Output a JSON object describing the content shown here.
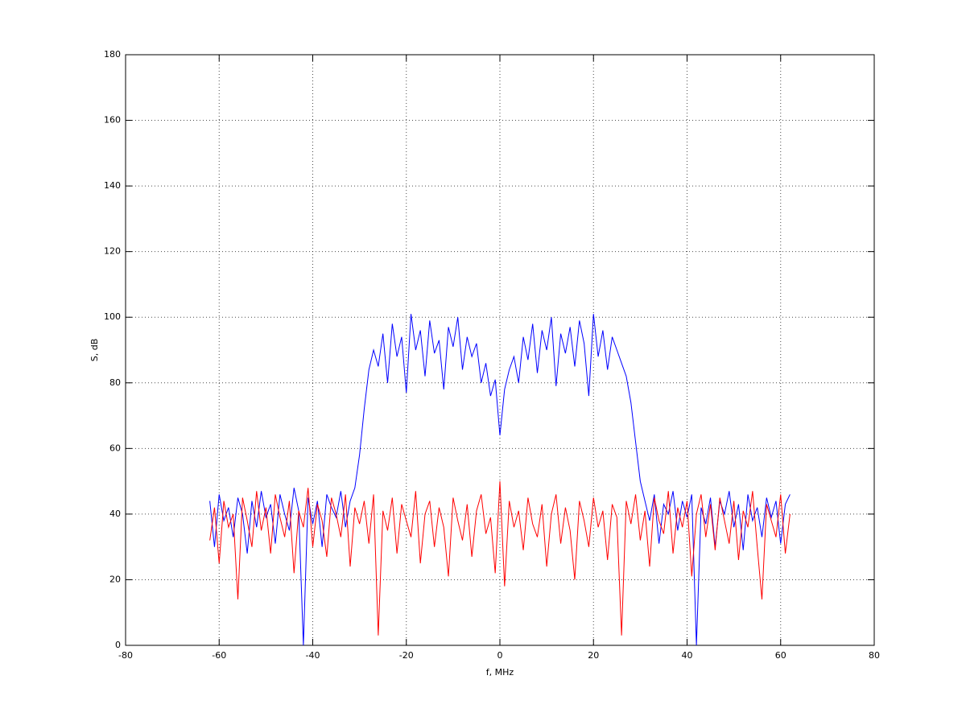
{
  "chart_data": {
    "type": "line",
    "xlabel": "f, MHz",
    "ylabel": "S, dB",
    "xlim": [
      -80,
      80
    ],
    "xticks": [
      -80,
      -60,
      -40,
      -20,
      0,
      20,
      40,
      60,
      80
    ],
    "ylim": [
      0,
      180
    ],
    "yticks": [
      0,
      20,
      40,
      60,
      80,
      100,
      120,
      140,
      160,
      180
    ],
    "grid": true,
    "x": [
      -62,
      -61,
      -60,
      -59,
      -58,
      -57,
      -56,
      -55,
      -54,
      -53,
      -52,
      -51,
      -50,
      -49,
      -48,
      -47,
      -46,
      -45,
      -44,
      -43,
      -42,
      -41,
      -40,
      -39,
      -38,
      -37,
      -36,
      -35,
      -34,
      -33,
      -32,
      -31,
      -30,
      -29,
      -28,
      -27,
      -26,
      -25,
      -24,
      -23,
      -22,
      -21,
      -20,
      -19,
      -18,
      -17,
      -16,
      -15,
      -14,
      -13,
      -12,
      -11,
      -10,
      -9,
      -8,
      -7,
      -6,
      -5,
      -4,
      -3,
      -2,
      -1,
      0,
      1,
      2,
      3,
      4,
      5,
      6,
      7,
      8,
      9,
      10,
      11,
      12,
      13,
      14,
      15,
      16,
      17,
      18,
      19,
      20,
      21,
      22,
      23,
      24,
      25,
      26,
      27,
      28,
      29,
      30,
      31,
      32,
      33,
      34,
      35,
      36,
      37,
      38,
      39,
      40,
      41,
      42,
      43,
      44,
      45,
      46,
      47,
      48,
      49,
      50,
      51,
      52,
      53,
      54,
      55,
      56,
      57,
      58,
      59,
      60,
      61,
      62
    ],
    "series": [
      {
        "color": "#0000ff",
        "values": [
          44,
          30,
          46,
          38,
          42,
          33,
          45,
          40,
          28,
          44,
          36,
          47,
          39,
          43,
          31,
          46,
          40,
          35,
          48,
          41,
          0,
          45,
          37,
          44,
          30,
          46,
          42,
          39,
          47,
          36,
          44,
          48,
          58,
          72,
          84,
          90,
          85,
          95,
          80,
          98,
          88,
          94,
          77,
          101,
          90,
          96,
          82,
          99,
          89,
          93,
          78,
          97,
          91,
          100,
          84,
          94,
          88,
          92,
          80,
          86,
          76,
          81,
          64,
          78,
          84,
          88,
          80,
          94,
          87,
          98,
          83,
          96,
          90,
          100,
          79,
          95,
          89,
          97,
          85,
          99,
          92,
          76,
          101,
          88,
          96,
          84,
          94,
          90,
          86,
          82,
          74,
          62,
          50,
          44,
          38,
          46,
          31,
          43,
          40,
          47,
          35,
          44,
          39,
          46,
          0,
          42,
          37,
          45,
          30,
          44,
          40,
          47,
          36,
          43,
          29,
          46,
          38,
          42,
          33,
          45,
          39,
          44,
          31,
          43,
          46
        ]
      },
      {
        "color": "#ff0000",
        "values": [
          32,
          42,
          25,
          44,
          36,
          40,
          14,
          45,
          38,
          30,
          47,
          35,
          42,
          28,
          46,
          39,
          33,
          44,
          22,
          41,
          36,
          48,
          30,
          43,
          38,
          27,
          45,
          40,
          33,
          46,
          24,
          42,
          37,
          44,
          31,
          46,
          3,
          41,
          35,
          45,
          28,
          43,
          38,
          33,
          47,
          25,
          40,
          44,
          30,
          42,
          36,
          21,
          45,
          38,
          32,
          43,
          27,
          41,
          46,
          34,
          39,
          22,
          50,
          18,
          44,
          36,
          41,
          29,
          45,
          37,
          33,
          43,
          24,
          40,
          46,
          31,
          42,
          35,
          20,
          44,
          38,
          30,
          45,
          36,
          41,
          26,
          43,
          39,
          3,
          44,
          37,
          46,
          32,
          41,
          24,
          45,
          38,
          34,
          47,
          28,
          42,
          36,
          44,
          21,
          40,
          46,
          33,
          43,
          29,
          45,
          38,
          31,
          44,
          26,
          41,
          36,
          47,
          30,
          14,
          43,
          38,
          33,
          46,
          28,
          40
        ]
      }
    ]
  }
}
